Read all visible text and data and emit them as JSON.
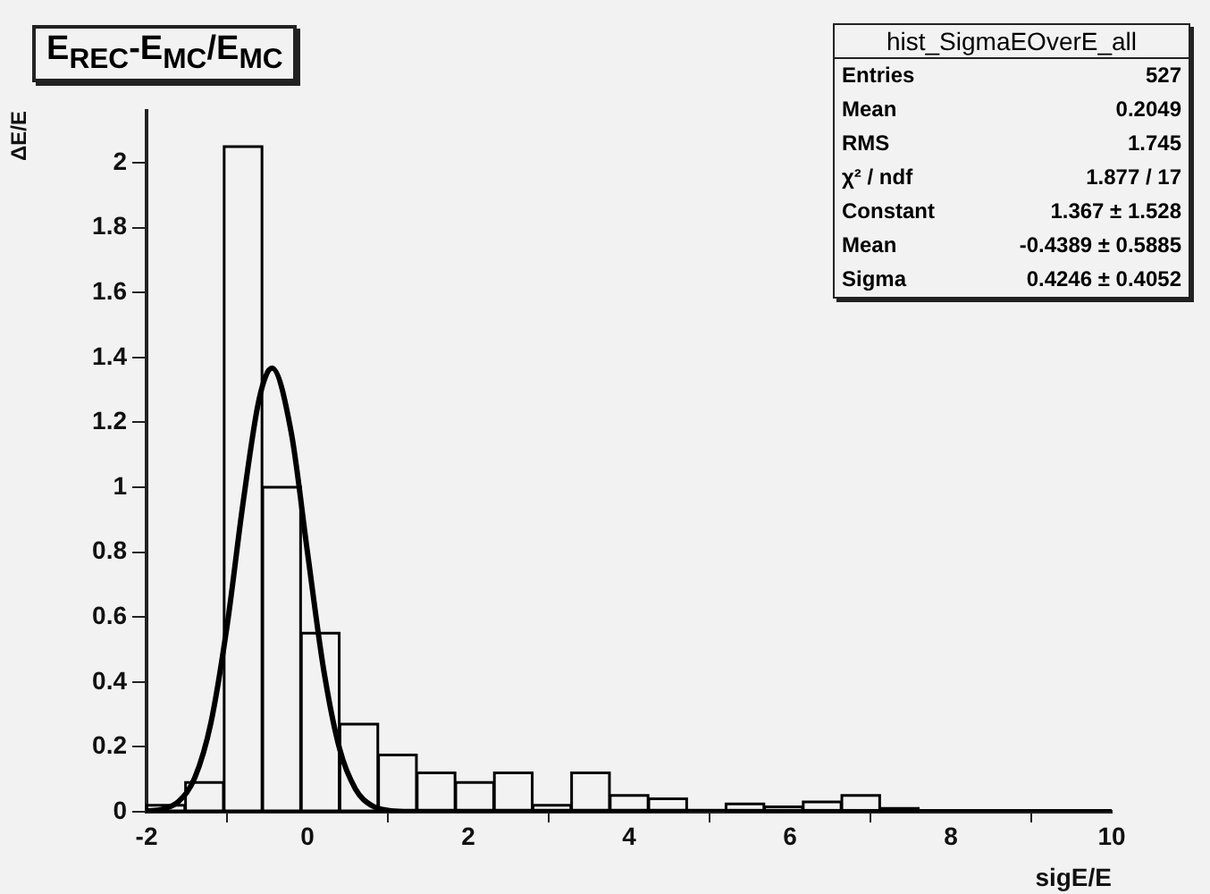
{
  "chart_data": {
    "type": "histogram",
    "title": "E$_{REC}$-E$_{MC}$/E$_{MC}$",
    "xlabel": "sigE/E",
    "ylabel": "ΔE/E",
    "bins": [
      -2,
      -1.52,
      -1.04,
      -0.56,
      -0.08,
      0.4,
      0.88,
      1.36,
      1.84,
      2.32,
      2.8,
      3.28,
      3.76,
      4.24,
      4.72,
      5.2,
      5.68,
      6.16,
      6.64,
      7.12,
      7.6,
      8.08,
      8.56,
      9.04,
      9.52,
      10
    ],
    "values": [
      0.02,
      0.09,
      2.05,
      1.0,
      0.55,
      0.27,
      0.175,
      0.12,
      0.09,
      0.12,
      0.02,
      0.12,
      0.05,
      0.04,
      0,
      0.024,
      0.015,
      0.03,
      0.05,
      0.01,
      0,
      0,
      0,
      0,
      0
    ],
    "color": "#000000",
    "series": [
      {
        "type": "line",
        "color": "#000000",
        "x": [
          -2,
          -1.8,
          -1.6,
          -1.4,
          -1.2,
          -1,
          -0.8,
          -0.6,
          -0.44,
          -0.2,
          0,
          0.2,
          0.4,
          0.6,
          0.8,
          1,
          1.2,
          10
        ],
        "values": [
          0.002,
          0.008,
          0.032,
          0.105,
          0.274,
          0.571,
          0.952,
          1.272,
          1.367,
          1.167,
          0.801,
          0.441,
          0.194,
          0.069,
          0.019,
          0.004,
          0.001,
          0
        ]
      }
    ],
    "xlim": [
      -2,
      10
    ],
    "xticks": [
      -2,
      0,
      2,
      4,
      6,
      8,
      10
    ],
    "ylim": [
      0,
      2.16
    ],
    "yticks": [
      0,
      0.2,
      0.4,
      0.6,
      0.8,
      1,
      1.2,
      1.4,
      1.6,
      1.8,
      2
    ],
    "grid": false,
    "legend": false,
    "annotations": [
      "hist_SigmaEOverE_all",
      "Entries",
      "527",
      "Mean",
      "0.2049",
      "RMS",
      "1.745",
      "χ² / ndf",
      "1.877 / 17",
      "Constant",
      "1.367 ± 1.528",
      "Mean",
      "-0.4389 ± 0.5885",
      "Sigma",
      "0.4246 ± 0.4052"
    ]
  }
}
